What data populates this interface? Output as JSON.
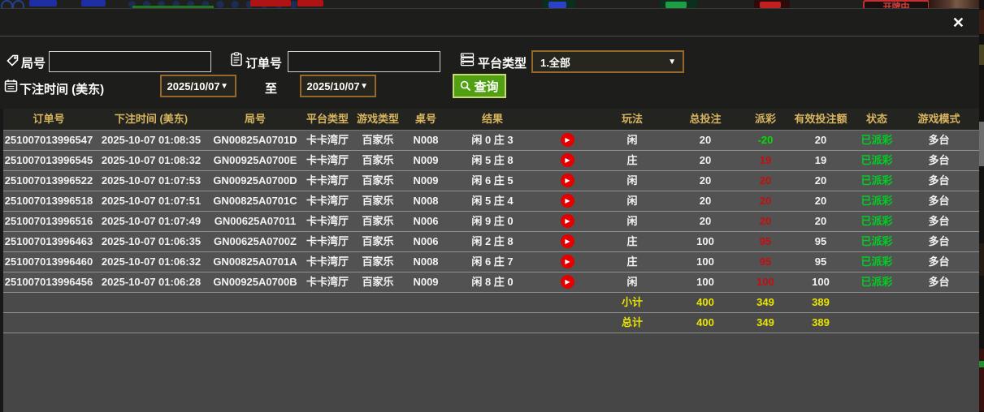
{
  "icons": {
    "close": "✕",
    "dropdown": "▼",
    "play": "▶"
  },
  "background": {
    "dealing_label": "开牌中"
  },
  "filters": {
    "game_no": {
      "label": "局号",
      "value": ""
    },
    "order_no": {
      "label": "订单号",
      "value": ""
    },
    "platform_type": {
      "label": "平台类型",
      "selected": "1.全部"
    },
    "bet_time": {
      "label": "下注时间 (美东)",
      "from": "2025/10/07",
      "to_label": "至",
      "to": "2025/10/07"
    },
    "query_label": "查询"
  },
  "table": {
    "columns": [
      "订单号",
      "下注时间 (美东)",
      "局号",
      "平台类型",
      "游戏类型",
      "桌号",
      "结果",
      "玩法",
      "总投注",
      "派彩",
      "有效投注额",
      "状态",
      "游戏模式"
    ],
    "rows": [
      {
        "order_no": "251007013996547",
        "bet_time": "2025-10-07 01:08:35",
        "game_no": "GN00825A0701D",
        "platform": "卡卡湾厅",
        "game_type": "百家乐",
        "table_no": "N008",
        "result": "闲 0 庄 3",
        "play": "闲",
        "total_bet": "20",
        "payout": "-20",
        "valid_bet": "20",
        "status": "已派彩",
        "mode": "多台"
      },
      {
        "order_no": "251007013996545",
        "bet_time": "2025-10-07 01:08:32",
        "game_no": "GN00925A0700E",
        "platform": "卡卡湾厅",
        "game_type": "百家乐",
        "table_no": "N009",
        "result": "闲 5 庄 8",
        "play": "庄",
        "total_bet": "20",
        "payout": "19",
        "valid_bet": "19",
        "status": "已派彩",
        "mode": "多台"
      },
      {
        "order_no": "251007013996522",
        "bet_time": "2025-10-07 01:07:53",
        "game_no": "GN00925A0700D",
        "platform": "卡卡湾厅",
        "game_type": "百家乐",
        "table_no": "N009",
        "result": "闲 6 庄 5",
        "play": "闲",
        "total_bet": "20",
        "payout": "20",
        "valid_bet": "20",
        "status": "已派彩",
        "mode": "多台"
      },
      {
        "order_no": "251007013996518",
        "bet_time": "2025-10-07 01:07:51",
        "game_no": "GN00825A0701C",
        "platform": "卡卡湾厅",
        "game_type": "百家乐",
        "table_no": "N008",
        "result": "闲 5 庄 4",
        "play": "闲",
        "total_bet": "20",
        "payout": "20",
        "valid_bet": "20",
        "status": "已派彩",
        "mode": "多台"
      },
      {
        "order_no": "251007013996516",
        "bet_time": "2025-10-07 01:07:49",
        "game_no": "GN00625A07011",
        "platform": "卡卡湾厅",
        "game_type": "百家乐",
        "table_no": "N006",
        "result": "闲 9 庄 0",
        "play": "闲",
        "total_bet": "20",
        "payout": "20",
        "valid_bet": "20",
        "status": "已派彩",
        "mode": "多台"
      },
      {
        "order_no": "251007013996463",
        "bet_time": "2025-10-07 01:06:35",
        "game_no": "GN00625A0700Z",
        "platform": "卡卡湾厅",
        "game_type": "百家乐",
        "table_no": "N006",
        "result": "闲 2 庄 8",
        "play": "庄",
        "total_bet": "100",
        "payout": "95",
        "valid_bet": "95",
        "status": "已派彩",
        "mode": "多台"
      },
      {
        "order_no": "251007013996460",
        "bet_time": "2025-10-07 01:06:32",
        "game_no": "GN00825A0701A",
        "platform": "卡卡湾厅",
        "game_type": "百家乐",
        "table_no": "N008",
        "result": "闲 6 庄 7",
        "play": "庄",
        "total_bet": "100",
        "payout": "95",
        "valid_bet": "95",
        "status": "已派彩",
        "mode": "多台"
      },
      {
        "order_no": "251007013996456",
        "bet_time": "2025-10-07 01:06:28",
        "game_no": "GN00925A0700B",
        "platform": "卡卡湾厅",
        "game_type": "百家乐",
        "table_no": "N009",
        "result": "闲 8 庄 0",
        "play": "闲",
        "total_bet": "100",
        "payout": "100",
        "valid_bet": "100",
        "status": "已派彩",
        "mode": "多台"
      }
    ],
    "subtotal": {
      "label": "小计",
      "total_bet": "400",
      "payout": "349",
      "valid_bet": "389"
    },
    "total": {
      "label": "总计",
      "total_bet": "400",
      "payout": "349",
      "valid_bet": "389"
    }
  },
  "colors": {
    "header_gold": "#d8b661",
    "payout_positive_red": "#c01010",
    "payout_negative_green": "#00dc00",
    "status_green": "#00cc22",
    "summary_yellow": "#e8e400",
    "query_green": "#51a013",
    "dropdown_border": "#96682c"
  }
}
